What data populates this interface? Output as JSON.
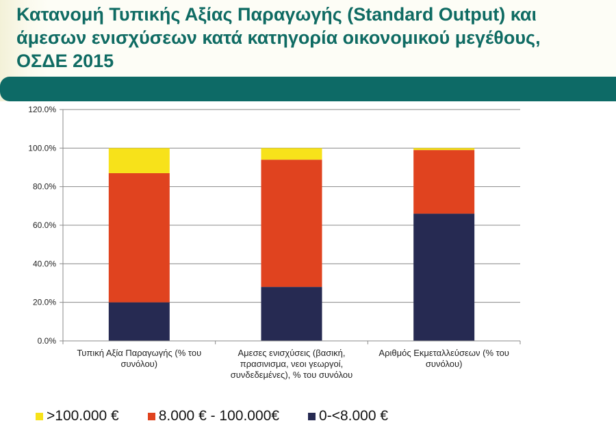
{
  "slide": {
    "title": "Κατανομή Τυπικής Αξίας Παραγωγής (Standard Output) και\nάμεσων ενισχύσεων κατά κατηγορία οικονομικού μεγέθους,\nΟΣΔΕ 2015",
    "title_color": "#0f6b63",
    "band_color": "#0d6a66"
  },
  "chart_data": {
    "type": "bar",
    "stacked": true,
    "title": "",
    "xlabel": "",
    "ylabel": "",
    "ylim": [
      0,
      120
    ],
    "y_ticks": [
      0,
      20,
      40,
      60,
      80,
      100,
      120
    ],
    "y_tick_labels": [
      "0.0%",
      "20.0%",
      "40.0%",
      "60.0%",
      "80.0%",
      "100.0%",
      "120.0%"
    ],
    "grid": true,
    "legend_position": "bottom",
    "categories": [
      [
        "Τυπική Αξία Παραγωγής (% του",
        "συνόλου)"
      ],
      [
        "Αμεσες ενισχύσεις (βασική,",
        "πρασινισμα, νεοι γεωργοί,",
        "συνδεδεμένες), % του συνόλου"
      ],
      [
        "Αριθμός Εκμεταλλεύσεων (% του",
        "συνόλου)"
      ]
    ],
    "series": [
      {
        "name": "0-<8.000 €",
        "color": "#262a52",
        "values": [
          20.0,
          28.0,
          66.0
        ]
      },
      {
        "name": "8.000 € - 100.000€",
        "color": "#e0431f",
        "values": [
          67.0,
          66.0,
          33.0
        ]
      },
      {
        "name": ">100.000 €",
        "color": "#f7e21a",
        "values": [
          13.0,
          6.0,
          1.0
        ]
      }
    ],
    "legend": [
      {
        "name": ">100.000 €",
        "color": "#f7e21a"
      },
      {
        "name": "8.000 € - 100.000€",
        "color": "#e0431f"
      },
      {
        "name": "0-<8.000 €",
        "color": "#262a52"
      }
    ]
  }
}
